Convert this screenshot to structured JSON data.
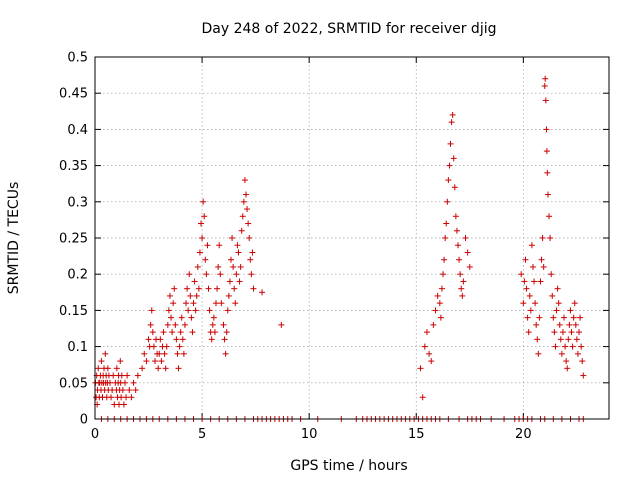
{
  "chart_data": {
    "type": "scatter",
    "title": "Day 248 of 2022, SRMTID for receiver djig",
    "xlabel": "GPS time / hours",
    "ylabel": "SRMTID / TECUs",
    "xlim": [
      0,
      24
    ],
    "ylim": [
      0,
      0.5
    ],
    "xticks": [
      0,
      5,
      10,
      15,
      20
    ],
    "xtick_labels": [
      "0",
      "5",
      "10",
      "15",
      "20"
    ],
    "yticks": [
      0,
      0.05,
      0.1,
      0.15,
      0.2,
      0.25,
      0.3,
      0.35,
      0.4,
      0.45,
      0.5
    ],
    "ytick_labels": [
      "0",
      "0.05",
      "0.1",
      "0.15",
      "0.2",
      "0.25",
      "0.3",
      "0.35",
      "0.4",
      "0.45",
      "0.5"
    ],
    "grid": true,
    "marker": "+",
    "color": "#cc0000",
    "series": [
      {
        "name": "SRMTID",
        "x": [
          0.02,
          0.05,
          0.08,
          0.1,
          0.12,
          0.15,
          0.18,
          0.2,
          0.22,
          0.25,
          0.28,
          0.3,
          0.32,
          0.35,
          0.38,
          0.4,
          0.42,
          0.45,
          0.48,
          0.5,
          0.52,
          0.55,
          0.58,
          0.6,
          0.62,
          0.65,
          0.7,
          0.75,
          0.8,
          0.85,
          0.9,
          0.95,
          1.0,
          1.02,
          1.05,
          1.08,
          1.1,
          1.12,
          1.15,
          1.18,
          1.2,
          1.22,
          1.25,
          1.3,
          1.35,
          1.4,
          1.45,
          1.5,
          1.6,
          1.7,
          1.8,
          1.9,
          2.0,
          2.2,
          2.3,
          2.4,
          2.5,
          2.55,
          2.6,
          2.65,
          2.7,
          2.75,
          2.8,
          2.85,
          2.9,
          2.95,
          3.0,
          3.05,
          3.1,
          3.15,
          3.2,
          3.25,
          3.3,
          3.35,
          3.4,
          3.45,
          3.5,
          3.55,
          3.6,
          3.65,
          3.7,
          3.75,
          3.8,
          3.85,
          3.9,
          3.95,
          4.0,
          4.05,
          4.1,
          4.15,
          4.2,
          4.25,
          4.3,
          4.35,
          4.4,
          4.45,
          4.5,
          4.55,
          4.6,
          4.65,
          4.7,
          4.75,
          4.8,
          4.85,
          4.9,
          4.95,
          5.0,
          5.05,
          5.1,
          5.15,
          5.2,
          5.25,
          5.3,
          5.35,
          5.4,
          5.45,
          5.5,
          5.55,
          5.6,
          5.65,
          5.7,
          5.75,
          5.8,
          5.85,
          5.9,
          6.0,
          6.05,
          6.1,
          6.15,
          6.2,
          6.25,
          6.3,
          6.35,
          6.4,
          6.45,
          6.5,
          6.55,
          6.6,
          6.65,
          6.7,
          6.75,
          6.8,
          6.85,
          6.9,
          6.95,
          7.0,
          7.05,
          7.1,
          7.15,
          7.2,
          7.25,
          7.3,
          7.35,
          7.4,
          7.8,
          8.7,
          15.2,
          15.3,
          15.4,
          15.5,
          15.6,
          15.7,
          15.8,
          15.9,
          16.0,
          16.1,
          16.15,
          16.2,
          16.25,
          16.3,
          16.35,
          16.4,
          16.45,
          16.5,
          16.55,
          16.6,
          16.65,
          16.7,
          16.75,
          16.8,
          16.85,
          16.9,
          16.95,
          17.0,
          17.05,
          17.1,
          17.15,
          17.2,
          17.3,
          17.4,
          17.5,
          19.9,
          20.0,
          20.05,
          20.1,
          20.15,
          20.2,
          20.25,
          20.3,
          20.35,
          20.4,
          20.45,
          20.5,
          20.55,
          20.6,
          20.65,
          20.7,
          20.75,
          20.8,
          20.85,
          20.9,
          20.95,
          21.0,
          21.02,
          21.05,
          21.08,
          21.1,
          21.12,
          21.15,
          21.2,
          21.25,
          21.3,
          21.35,
          21.4,
          21.45,
          21.5,
          21.55,
          21.6,
          21.65,
          21.7,
          21.75,
          21.8,
          21.85,
          21.9,
          21.95,
          22.0,
          22.05,
          22.1,
          22.15,
          22.2,
          22.25,
          22.3,
          22.35,
          22.4,
          22.45,
          22.5,
          22.55,
          22.6,
          22.65,
          22.7,
          22.75,
          22.8,
          0.3,
          0.6,
          0.9,
          1.2,
          1.5,
          1.8,
          2.1,
          2.4,
          2.7,
          3.0,
          3.4,
          3.8,
          4.2,
          4.6,
          5.0,
          5.4,
          5.8,
          6.2,
          6.6,
          7.0,
          7.4,
          7.6,
          7.8,
          8.0,
          8.2,
          8.4,
          8.6,
          8.8,
          9.0,
          9.2,
          9.6,
          10.4,
          11.5,
          12.2,
          12.5,
          12.7,
          12.9,
          13.1,
          13.3,
          13.5,
          13.7,
          13.9,
          14.1,
          14.3,
          14.5,
          14.7,
          14.9,
          15.1,
          15.3,
          15.5,
          15.7,
          15.9,
          16.1,
          16.5,
          17.0,
          17.4,
          17.6,
          17.8,
          18.0,
          18.5,
          19.1,
          19.6,
          19.8,
          20.0,
          20.2,
          20.4,
          20.8,
          21.0,
          21.4,
          21.8,
          22.2,
          22.6,
          22.8
        ],
        "y": [
          0.05,
          0.03,
          0.06,
          0.02,
          0.04,
          0.07,
          0.05,
          0.03,
          0.05,
          0.06,
          0.04,
          0.08,
          0.05,
          0.03,
          0.06,
          0.05,
          0.07,
          0.04,
          0.09,
          0.05,
          0.06,
          0.03,
          0.05,
          0.07,
          0.04,
          0.06,
          0.05,
          0.03,
          0.04,
          0.06,
          0.02,
          0.05,
          0.04,
          0.07,
          0.03,
          0.05,
          0.06,
          0.02,
          0.04,
          0.08,
          0.05,
          0.03,
          0.06,
          0.04,
          0.02,
          0.05,
          0.03,
          0.06,
          0.04,
          0.03,
          0.05,
          0.04,
          0.06,
          0.07,
          0.09,
          0.08,
          0.11,
          0.1,
          0.13,
          0.15,
          0.12,
          0.1,
          0.08,
          0.11,
          0.09,
          0.07,
          0.09,
          0.11,
          0.08,
          0.1,
          0.12,
          0.09,
          0.07,
          0.1,
          0.13,
          0.15,
          0.17,
          0.14,
          0.12,
          0.16,
          0.18,
          0.13,
          0.11,
          0.09,
          0.07,
          0.1,
          0.12,
          0.14,
          0.11,
          0.09,
          0.13,
          0.16,
          0.18,
          0.15,
          0.2,
          0.17,
          0.14,
          0.12,
          0.16,
          0.19,
          0.15,
          0.17,
          0.21,
          0.18,
          0.23,
          0.27,
          0.25,
          0.3,
          0.28,
          0.22,
          0.2,
          0.24,
          0.18,
          0.15,
          0.12,
          0.11,
          0.13,
          0.14,
          0.12,
          0.16,
          0.18,
          0.21,
          0.24,
          0.2,
          0.16,
          0.13,
          0.11,
          0.09,
          0.12,
          0.15,
          0.17,
          0.19,
          0.22,
          0.25,
          0.21,
          0.18,
          0.16,
          0.2,
          0.24,
          0.23,
          0.19,
          0.21,
          0.26,
          0.28,
          0.3,
          0.33,
          0.31,
          0.29,
          0.27,
          0.25,
          0.22,
          0.2,
          0.23,
          0.18,
          0.175,
          0.13,
          0.07,
          0.03,
          0.1,
          0.12,
          0.09,
          0.08,
          0.13,
          0.15,
          0.17,
          0.16,
          0.14,
          0.18,
          0.2,
          0.22,
          0.25,
          0.27,
          0.3,
          0.33,
          0.35,
          0.38,
          0.41,
          0.42,
          0.36,
          0.32,
          0.28,
          0.26,
          0.24,
          0.22,
          0.2,
          0.18,
          0.17,
          0.19,
          0.25,
          0.23,
          0.21,
          0.2,
          0.16,
          0.19,
          0.22,
          0.18,
          0.14,
          0.12,
          0.17,
          0.15,
          0.24,
          0.21,
          0.19,
          0.16,
          0.13,
          0.11,
          0.09,
          0.14,
          0.19,
          0.22,
          0.25,
          0.21,
          0.46,
          0.47,
          0.44,
          0.4,
          0.37,
          0.34,
          0.31,
          0.28,
          0.25,
          0.2,
          0.17,
          0.14,
          0.12,
          0.1,
          0.15,
          0.18,
          0.16,
          0.13,
          0.11,
          0.09,
          0.12,
          0.14,
          0.1,
          0.08,
          0.07,
          0.11,
          0.13,
          0.15,
          0.12,
          0.1,
          0.14,
          0.16,
          0.13,
          0.11,
          0.09,
          0.12,
          0.14,
          0.1,
          0.08,
          0.06,
          0,
          0,
          0,
          0,
          0,
          0,
          0,
          0,
          0,
          0,
          0,
          0,
          0,
          0,
          0,
          0,
          0,
          0,
          0,
          0,
          0,
          0,
          0,
          0,
          0,
          0,
          0,
          0,
          0,
          0,
          0,
          0,
          0,
          0,
          0,
          0,
          0,
          0,
          0,
          0,
          0,
          0,
          0,
          0,
          0,
          0,
          0,
          0,
          0,
          0,
          0,
          0,
          0,
          0,
          0,
          0,
          0,
          0,
          0,
          0,
          0,
          0,
          0,
          0,
          0,
          0,
          0,
          0,
          0,
          0,
          0,
          0,
          0
        ]
      }
    ]
  }
}
